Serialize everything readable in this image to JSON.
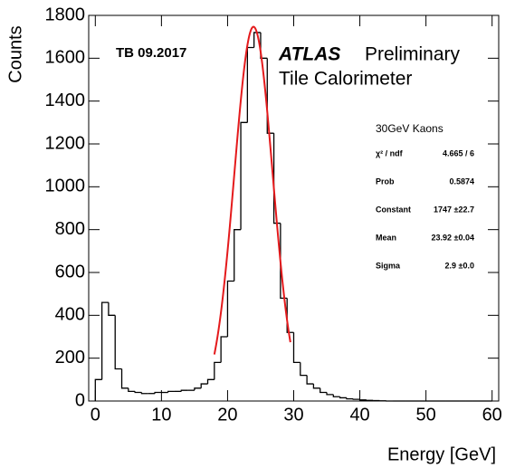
{
  "chart_data": {
    "type": "histogram",
    "y_label": "Counts",
    "x_label": "Energy [GeV]",
    "annotations": {
      "run": "TB 09.2017",
      "atlas": "ATLAS",
      "status": "Preliminary",
      "detector": "Tile Calorimeter"
    },
    "bins": [
      0,
      1,
      2,
      3,
      4,
      5,
      6,
      7,
      8,
      9,
      10,
      11,
      12,
      13,
      14,
      15,
      16,
      17,
      18,
      19,
      20,
      21,
      22,
      23,
      24,
      25,
      26,
      27,
      28,
      29,
      30,
      31,
      32,
      33,
      34,
      35,
      36,
      37,
      38,
      39,
      40,
      41,
      42,
      43,
      44,
      45,
      46,
      47,
      48,
      49,
      50,
      51,
      52,
      53,
      54,
      55,
      56,
      57,
      58,
      59,
      60
    ],
    "values": [
      100,
      460,
      400,
      150,
      60,
      45,
      40,
      35,
      35,
      40,
      40,
      45,
      45,
      50,
      50,
      60,
      80,
      100,
      180,
      300,
      560,
      800,
      1300,
      1650,
      1720,
      1600,
      1250,
      830,
      480,
      320,
      180,
      120,
      80,
      60,
      40,
      30,
      20,
      15,
      10,
      8,
      5,
      3,
      2,
      1,
      0,
      0,
      0,
      0,
      0,
      0,
      0,
      0,
      0,
      0,
      0,
      0,
      0,
      0,
      0,
      0
    ],
    "color": "#000000",
    "fit": {
      "color": "#e41a1c",
      "constant": 1747,
      "mean": 23.92,
      "sigma": 2.9,
      "xrange": [
        18,
        29.5
      ]
    },
    "stats": {
      "title": "30GeV Kaons",
      "rows": [
        [
          "χ² / ndf",
          "4.665 / 6"
        ],
        [
          "Prob",
          "0.5874"
        ],
        [
          "Constant",
          "1747 ±22.7"
        ],
        [
          "Mean",
          "23.92 ±0.04"
        ],
        [
          "Sigma",
          "2.9 ±0.0"
        ]
      ]
    },
    "xlim": [
      -1,
      61
    ],
    "xticks": [
      0,
      10,
      20,
      30,
      40,
      50,
      60
    ],
    "ylim": [
      0,
      1800
    ],
    "yticks": [
      0,
      200,
      400,
      600,
      800,
      1000,
      1200,
      1400,
      1600,
      1800
    ]
  }
}
